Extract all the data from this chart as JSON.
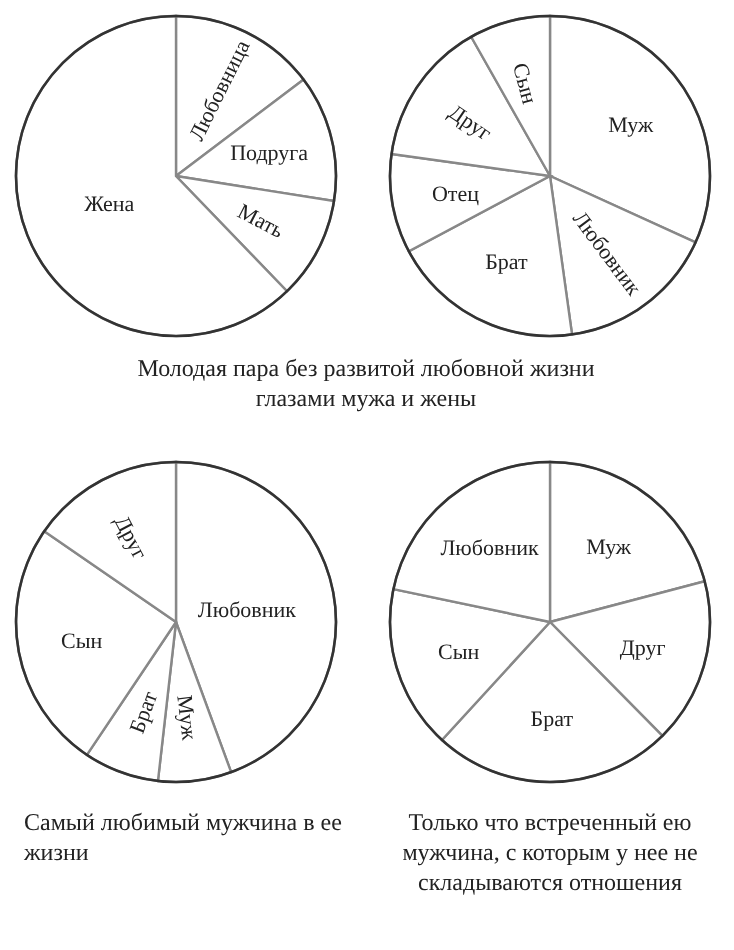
{
  "chart_data": [
    {
      "type": "pie",
      "categories": [
        "Любовница",
        "Подруга",
        "Мать",
        "Жена"
      ],
      "values": [
        14.7,
        12.8,
        10.3,
        62.2
      ],
      "colors": [
        "#ffffff",
        "#ffffff",
        "#ffffff",
        "#ffffff"
      ],
      "annotations": [
        "Молодая пара без развитой любовной жизни глазами мужа и жены"
      ]
    },
    {
      "type": "pie",
      "categories": [
        "Муж",
        "Любовник",
        "Брат",
        "Отец",
        "Друг",
        "Сын"
      ],
      "values": [
        31.8,
        16,
        19.4,
        10,
        14.6,
        8.2
      ],
      "colors": [
        "#ffffff",
        "#ffffff",
        "#ffffff",
        "#ffffff",
        "#ffffff",
        "#ffffff"
      ]
    },
    {
      "type": "pie",
      "categories": [
        "Любовник",
        "Муж",
        "Брат",
        "Сын",
        "Друг"
      ],
      "values": [
        44.4,
        7.4,
        7.6,
        25.2,
        15.4
      ],
      "colors": [
        "#ffffff",
        "#ffffff",
        "#ffffff",
        "#ffffff",
        "#ffffff"
      ],
      "annotations": [
        "Самый любимый мужчина в ее жизни"
      ]
    },
    {
      "type": "pie",
      "categories": [
        "Муж",
        "Друг",
        "Брат",
        "Сын",
        "Любовник"
      ],
      "values": [
        20.9,
        16.7,
        24.2,
        16.5,
        21.7
      ],
      "colors": [
        "#ffffff",
        "#ffffff",
        "#ffffff",
        "#ffffff",
        "#ffffff"
      ],
      "annotations": [
        "Только что встреченный ею мужчина, с которым у нее не складываются отношения"
      ]
    }
  ]
}
